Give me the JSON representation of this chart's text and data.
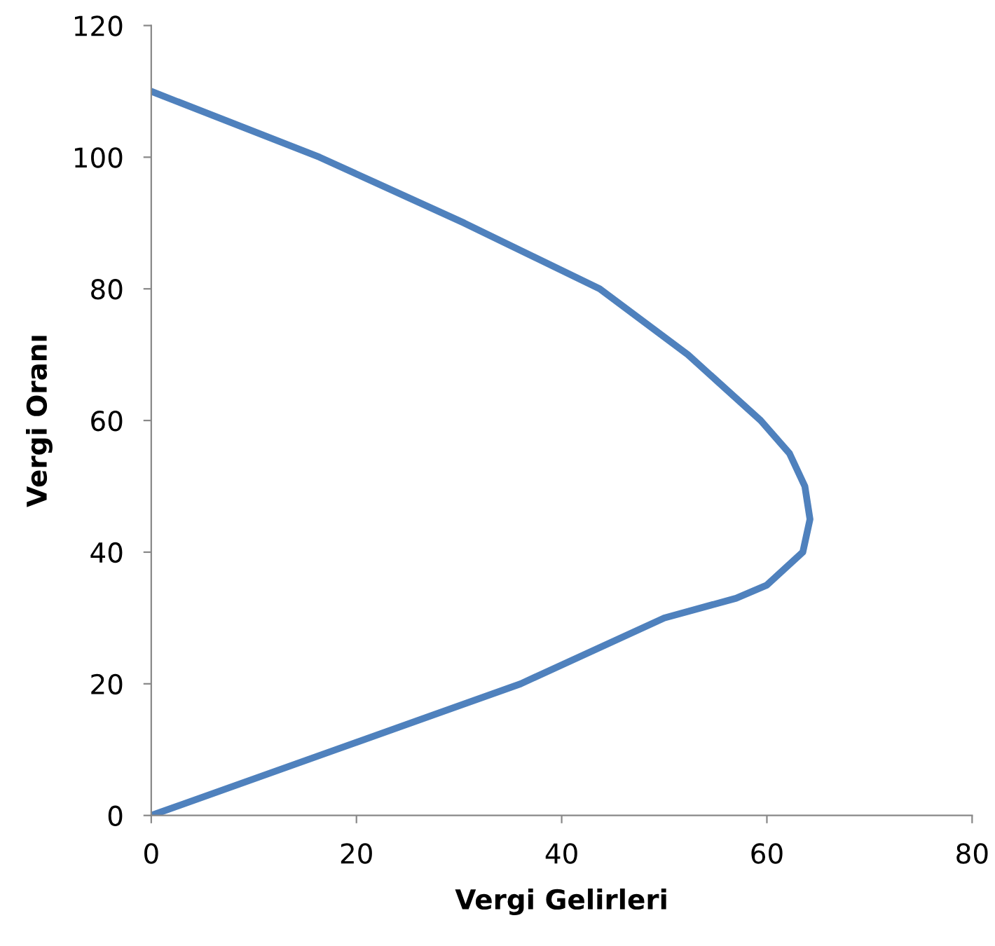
{
  "chart_data": {
    "type": "line",
    "xlabel": "Vergi Gelirleri",
    "ylabel": "Vergi Oranı",
    "series": [
      {
        "color": "#4f81bd",
        "x": [
          0,
          18,
          36,
          50,
          57,
          60,
          63.5,
          64.2,
          63.7,
          62.2,
          59.4,
          52.3,
          43.7,
          30.5,
          16.4,
          0
        ],
        "values": [
          0,
          10,
          20,
          30,
          33,
          35,
          40,
          45,
          50,
          55,
          60,
          70,
          80,
          90,
          100,
          110
        ]
      }
    ],
    "xlim": [
      0,
      80
    ],
    "ylim": [
      0,
      120
    ],
    "xticks": [
      0,
      20,
      40,
      60,
      80
    ],
    "yticks": [
      0,
      20,
      40,
      60,
      80,
      100,
      120
    ],
    "grid": false,
    "legend": false,
    "marker": "none",
    "line_style": "solid"
  }
}
